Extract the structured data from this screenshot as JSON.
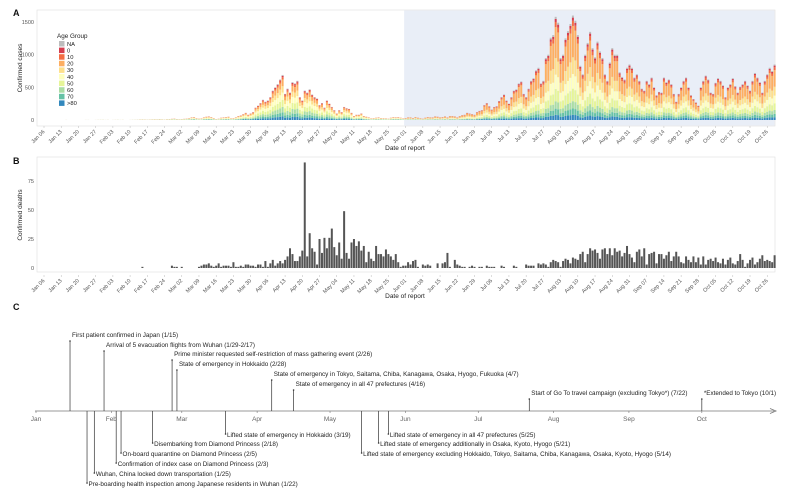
{
  "chart_data": [
    {
      "panel": "A",
      "type": "bar",
      "stacked": true,
      "title": "",
      "xlabel": "Date of report",
      "ylabel": "Confirmed cases",
      "ylim": [
        0,
        1600
      ],
      "yticks": [
        "0",
        "500",
        "1000",
        "1500"
      ],
      "start_date": "Jan 06",
      "shaded_from": "Jun 01",
      "xticks": [
        "Jan 06",
        "Jan 13",
        "Jan 20",
        "Jan 27",
        "Feb 03",
        "Feb 10",
        "Feb 17",
        "Feb 24",
        "Mar 02",
        "Mar 09",
        "Mar 16",
        "Mar 23",
        "Mar 30",
        "Apr 06",
        "Apr 13",
        "Apr 20",
        "Apr 27",
        "May 04",
        "May 11",
        "May 18",
        "May 25",
        "Jun 01",
        "Jun 08",
        "Jun 15",
        "Jun 22",
        "Jun 29",
        "Jul 06",
        "Jul 13",
        "Jul 20",
        "Jul 27",
        "Aug 03",
        "Aug 10",
        "Aug 17",
        "Aug 24",
        "Aug 31",
        "Sep 07",
        "Sep 14",
        "Sep 21",
        "Sep 28",
        "Oct 05",
        "Oct 12",
        "Oct 19",
        "Oct 26"
      ],
      "legend": {
        "title": "Age Group",
        "placement": "top-left",
        "groups": [
          "NA",
          "0",
          "10",
          "20",
          "30",
          "40",
          "50",
          "60",
          "70",
          ">80"
        ],
        "colors": [
          "#bdbdbd",
          "#d53e4f",
          "#f46d43",
          "#fdae61",
          "#fee08b",
          "#ffffbf",
          "#e6f598",
          "#abdda4",
          "#66c2a5",
          "#3288bd"
        ]
      },
      "age_share_before_jun01": [
        0.02,
        0.03,
        0.05,
        0.15,
        0.14,
        0.16,
        0.16,
        0.12,
        0.09,
        0.08
      ],
      "age_share_from_jun01": [
        0.02,
        0.03,
        0.05,
        0.3,
        0.16,
        0.14,
        0.12,
        0.07,
        0.06,
        0.05
      ],
      "daily_totals": [
        0,
        0,
        0,
        0,
        0,
        0,
        0,
        0,
        0,
        1,
        0,
        0,
        0,
        0,
        0,
        0,
        0,
        1,
        1,
        0,
        0,
        1,
        2,
        3,
        3,
        1,
        2,
        0,
        1,
        2,
        3,
        1,
        2,
        0,
        0,
        1,
        3,
        3,
        5,
        8,
        10,
        8,
        6,
        8,
        10,
        12,
        10,
        15,
        10,
        8,
        12,
        15,
        18,
        22,
        15,
        12,
        14,
        18,
        22,
        30,
        40,
        45,
        30,
        20,
        25,
        40,
        50,
        55,
        45,
        30,
        15,
        20,
        35,
        40,
        45,
        50,
        25,
        30,
        40,
        60,
        70,
        90,
        110,
        80,
        100,
        120,
        190,
        220,
        260,
        310,
        280,
        300,
        350,
        450,
        500,
        550,
        620,
        690,
        400,
        480,
        420,
        580,
        560,
        600,
        350,
        300,
        450,
        420,
        470,
        390,
        350,
        330,
        230,
        260,
        190,
        300,
        250,
        200,
        150,
        100,
        150,
        120,
        200,
        180,
        170,
        110,
        60,
        80,
        80,
        100,
        60,
        50,
        40,
        25,
        30,
        35,
        40,
        30,
        30,
        25,
        20,
        35,
        45,
        40,
        45,
        35,
        25,
        30,
        40,
        40,
        30,
        45,
        35,
        25,
        20,
        35,
        45,
        40,
        40,
        55,
        50,
        40,
        45,
        55,
        40,
        60,
        60,
        55,
        40,
        60,
        75,
        80,
        110,
        100,
        90,
        80,
        120,
        140,
        150,
        230,
        260,
        210,
        160,
        200,
        210,
        290,
        350,
        390,
        300,
        250,
        350,
        450,
        470,
        560,
        590,
        400,
        350,
        480,
        600,
        640,
        760,
        800,
        560,
        600,
        950,
        1000,
        1260,
        1300,
        1580,
        1490,
        950,
        1000,
        1250,
        1360,
        1470,
        1600,
        1520,
        1300,
        830,
        700,
        1000,
        1180,
        1350,
        1100,
        960,
        1200,
        1050,
        950,
        700,
        600,
        880,
        1100,
        1000,
        1000,
        730,
        660,
        620,
        800,
        850,
        800,
        650,
        700,
        600,
        480,
        450,
        600,
        550,
        650,
        500,
        380,
        430,
        420,
        650,
        580,
        620,
        550,
        400,
        280,
        400,
        500,
        600,
        650,
        500,
        380,
        320,
        270,
        220,
        500,
        600,
        680,
        620,
        420,
        400,
        570,
        640,
        600,
        530,
        350,
        500,
        550,
        640,
        520,
        420,
        510,
        550,
        600,
        530,
        450,
        600,
        720,
        650,
        580,
        420,
        600,
        700,
        800,
        750,
        850
      ]
    },
    {
      "panel": "B",
      "type": "bar",
      "title": "",
      "xlabel": "Date of report",
      "ylabel": "Confirmed deaths",
      "ylim": [
        0,
        95
      ],
      "yticks": [
        "0",
        "25",
        "50",
        "75"
      ],
      "start_date": "Jan 06",
      "color": "#555555",
      "daily_values": [
        0,
        0,
        0,
        0,
        0,
        0,
        0,
        0,
        0,
        0,
        0,
        0,
        0,
        0,
        0,
        0,
        0,
        0,
        0,
        0,
        0,
        0,
        0,
        0,
        0,
        0,
        0,
        0,
        0,
        0,
        0,
        0,
        0,
        0,
        0,
        0,
        0,
        0,
        0,
        0,
        1,
        0,
        0,
        0,
        0,
        0,
        0,
        0,
        0,
        0,
        0,
        0,
        2,
        1,
        1,
        0,
        1,
        0,
        0,
        0,
        0,
        0,
        0,
        1,
        2,
        3,
        3,
        4,
        2,
        1,
        2,
        4,
        1,
        2,
        2,
        2,
        1,
        5,
        1,
        1,
        2,
        1,
        3,
        3,
        2,
        2,
        1,
        3,
        3,
        1,
        6,
        1,
        4,
        7,
        2,
        4,
        6,
        4,
        7,
        10,
        17,
        12,
        6,
        6,
        10,
        15,
        91,
        10,
        30,
        17,
        14,
        3,
        25,
        13,
        26,
        17,
        26,
        34,
        18,
        11,
        22,
        8,
        49,
        13,
        8,
        22,
        25,
        19,
        23,
        15,
        19,
        5,
        14,
        8,
        6,
        19,
        12,
        12,
        10,
        16,
        12,
        10,
        7,
        12,
        5,
        1,
        2,
        2,
        5,
        3,
        6,
        7,
        1,
        0,
        3,
        2,
        3,
        2,
        0,
        0,
        4,
        0,
        4,
        5,
        13,
        1,
        0,
        7,
        3,
        2,
        1,
        1,
        0,
        1,
        2,
        1,
        0,
        1,
        1,
        0,
        2,
        1,
        1,
        1,
        0,
        0,
        2,
        1,
        0,
        0,
        0,
        2,
        1,
        0,
        0,
        0,
        3,
        2,
        2,
        2,
        0,
        4,
        3,
        4,
        3,
        1,
        5,
        7,
        6,
        5,
        1,
        6,
        8,
        7,
        4,
        9,
        8,
        7,
        12,
        14,
        5,
        12,
        17,
        15,
        16,
        13,
        8,
        16,
        17,
        12,
        17,
        11,
        17,
        14,
        15,
        10,
        13,
        19,
        12,
        9,
        5,
        14,
        16,
        10,
        17,
        3,
        12,
        13,
        14,
        4,
        12,
        12,
        8,
        11,
        14,
        6,
        10,
        14,
        10,
        5,
        4,
        10,
        7,
        5,
        10,
        5,
        9,
        3,
        10,
        3,
        7,
        8,
        6,
        9,
        5,
        4,
        8,
        3,
        7,
        9,
        4,
        3,
        6,
        12,
        7,
        1,
        4,
        7,
        9,
        3,
        5,
        8,
        11,
        6,
        7,
        6,
        5,
        11
      ]
    },
    {
      "panel": "C",
      "type": "timeline",
      "months": [
        "Jan",
        "Feb",
        "Mar",
        "Apr",
        "May",
        "Jun",
        "Jul",
        "Aug",
        "Sep",
        "Oct"
      ],
      "events_above": [
        {
          "date": "1/15",
          "label": "First patient confirmed in Japan (1/15)"
        },
        {
          "date": "1/29",
          "label": "Arrival of 5 evacuation flights from Wuhan (1/29-2/17)"
        },
        {
          "date": "2/26",
          "label": "Prime minister requested self-restriction of mass gathering event (2/26)"
        },
        {
          "date": "2/28",
          "label": "State of emergency in Hokkaido (2/28)"
        },
        {
          "date": "4/7",
          "label": "State of emergency in Tokyo, Saitama, Chiba, Kanagawa, Osaka, Hyogo, Fukuoka (4/7)"
        },
        {
          "date": "4/16",
          "label": "State of emergency in all 47 prefectures (4/16)"
        },
        {
          "date": "7/22",
          "label": "Start of Go To travel campaign (excluding Tokyo*) (7/22)"
        },
        {
          "date": "10/1",
          "label": "*Extended to Tokyo (10/1)"
        }
      ],
      "events_below": [
        {
          "date": "3/19",
          "label": "Lifted state of emergency in Hokkaido (3/19)"
        },
        {
          "date": "2/18",
          "label": "Disembarking from Diamond Princess (2/18)"
        },
        {
          "date": "2/5",
          "label": "On-board quarantine on Diamond Princess (2/5)"
        },
        {
          "date": "2/3",
          "label": "Confirmation of index case on Diamond Princess (2/3)"
        },
        {
          "date": "1/25",
          "label": "Wuhan, China locked down transportation (1/25)"
        },
        {
          "date": "1/22",
          "label": "Pre-boarding health inspection among Japanese residents in Wuhan (1/22)"
        },
        {
          "date": "5/25",
          "label": "Lifted state of emergency in all 47 prefectures (5/25)"
        },
        {
          "date": "5/21",
          "label": "Lifted state of emergency additionally in Osaka, Kyoto, Hyogo (5/21)"
        },
        {
          "date": "5/14",
          "label": "Lifted state of emergency excluding Hokkaido, Tokyo, Saitama, Chiba, Kanagawa, Osaka, Kyoto, Hyogo (5/14)"
        }
      ]
    }
  ],
  "panel_labels": {
    "a": "A",
    "b": "B",
    "c": "C"
  }
}
